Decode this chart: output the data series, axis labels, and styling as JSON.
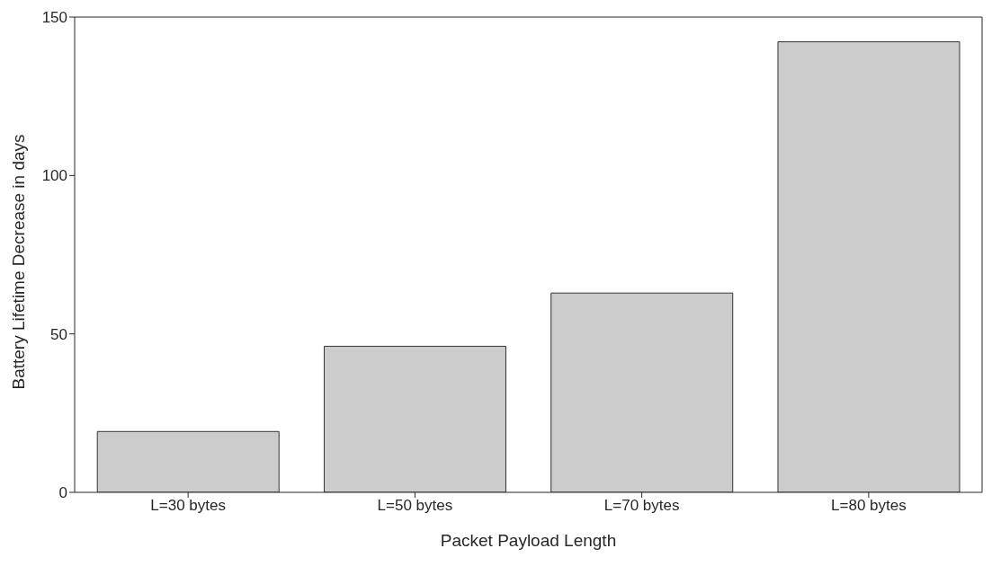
{
  "chart_data": {
    "type": "bar",
    "xlabel": "Packet Payload Length",
    "ylabel": "Battery Lifetime Decrease in days",
    "categories": [
      "L=30 bytes",
      "L=50 bytes",
      "L=70 bytes",
      "L=80 bytes"
    ],
    "values": [
      19.2,
      46.1,
      62.9,
      142.2
    ],
    "color": "#cccccc",
    "ylim": [
      0,
      150
    ],
    "yticks": [
      0,
      50,
      100,
      150
    ],
    "grid": false
  }
}
